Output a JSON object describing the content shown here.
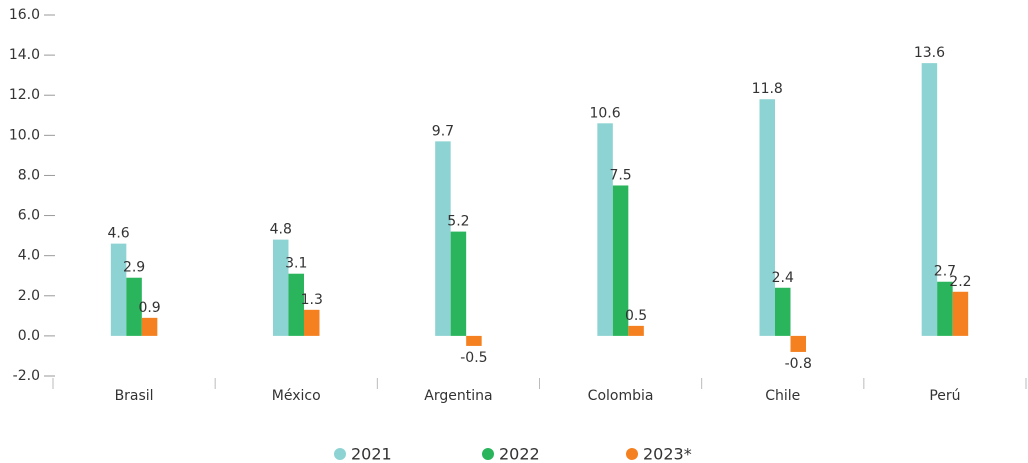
{
  "chart_data": {
    "type": "bar",
    "categories": [
      "Brasil",
      "México",
      "Argentina",
      "Colombia",
      "Chile",
      "Perú"
    ],
    "series": [
      {
        "name": "2021",
        "color": "#8ed3d3",
        "values": [
          4.6,
          4.8,
          9.7,
          10.6,
          11.8,
          13.6
        ]
      },
      {
        "name": "2022",
        "color": "#2ab55d",
        "values": [
          2.9,
          3.1,
          5.2,
          7.5,
          2.4,
          2.7
        ]
      },
      {
        "name": "2023*",
        "color": "#f4801f",
        "values": [
          0.9,
          1.3,
          -0.5,
          0.5,
          -0.8,
          2.2
        ]
      }
    ],
    "ylim": [
      -2,
      16
    ],
    "yticks": [
      {
        "value": -2,
        "label": "-2.0"
      },
      {
        "value": 0,
        "label": "0.0"
      },
      {
        "value": 2,
        "label": "2.0"
      },
      {
        "value": 4,
        "label": "4.0"
      },
      {
        "value": 6,
        "label": "6.0"
      },
      {
        "value": 8,
        "label": "8.0"
      },
      {
        "value": 10,
        "label": "10.0"
      },
      {
        "value": 12,
        "label": "12.0"
      },
      {
        "value": 14,
        "label": "14.0"
      },
      {
        "value": 16,
        "label": "16.0"
      }
    ],
    "legend": "bottom"
  }
}
